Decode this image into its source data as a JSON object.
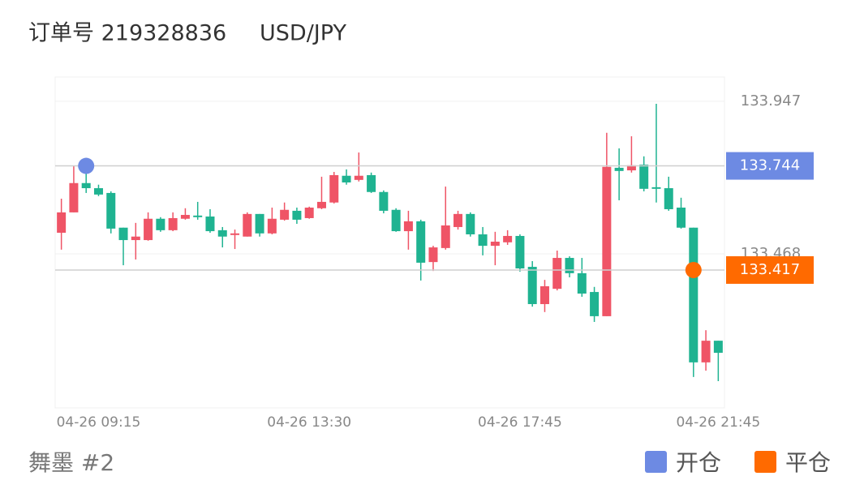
{
  "chart_data": {
    "type": "candlestick",
    "title": "订单号 219328836",
    "symbol": "USD/JPY",
    "footnote": "舞墨 #2",
    "categories": [
      null,
      null,
      null,
      "04-26 09:15",
      null,
      null,
      null,
      null,
      null,
      null,
      null,
      null,
      null,
      null,
      null,
      null,
      null,
      null,
      null,
      null,
      "04-26 13:30",
      null,
      null,
      null,
      null,
      null,
      null,
      null,
      null,
      null,
      null,
      null,
      null,
      null,
      null,
      null,
      null,
      "04-26 17:45",
      null,
      null,
      null,
      null,
      null,
      null,
      null,
      null,
      null,
      null,
      null,
      null,
      null,
      null,
      null,
      "04-26 21:45"
    ],
    "open": [
      133.534,
      133.598,
      133.69,
      133.674,
      133.659,
      133.55,
      133.511,
      133.511,
      133.578,
      133.542,
      133.578,
      133.588,
      133.585,
      133.542,
      133.527,
      133.522,
      133.593,
      133.532,
      133.575,
      133.603,
      133.58,
      133.611,
      133.629,
      133.713,
      133.7,
      133.715,
      133.662,
      133.606,
      133.539,
      133.57,
      133.442,
      133.486,
      133.552,
      133.593,
      133.529,
      133.493,
      133.504,
      133.524,
      133.427,
      133.31,
      133.358,
      133.455,
      133.407,
      133.348,
      133.272,
      133.738,
      133.73,
      133.748,
      133.677,
      133.674,
      133.613,
      133.55,
      133.127,
      133.195
    ],
    "high": [
      133.641,
      133.743,
      133.725,
      133.685,
      133.664,
      133.55,
      133.565,
      133.598,
      133.583,
      133.598,
      133.611,
      133.631,
      133.608,
      133.552,
      133.544,
      133.598,
      133.593,
      133.613,
      133.629,
      133.613,
      133.616,
      133.71,
      133.725,
      133.733,
      133.786,
      133.723,
      133.667,
      133.611,
      133.603,
      133.575,
      133.493,
      133.679,
      133.603,
      133.598,
      133.552,
      133.537,
      133.542,
      133.529,
      133.445,
      133.386,
      133.478,
      133.46,
      133.455,
      133.364,
      133.848,
      133.799,
      133.837,
      133.774,
      133.939,
      133.71,
      133.644,
      133.55,
      133.228,
      133.195
    ],
    "low": [
      133.481,
      133.598,
      133.659,
      133.649,
      133.532,
      133.432,
      133.45,
      133.509,
      133.537,
      133.539,
      133.575,
      133.575,
      133.534,
      133.488,
      133.483,
      133.522,
      133.522,
      133.529,
      133.572,
      133.562,
      133.578,
      133.608,
      133.626,
      133.685,
      133.695,
      133.659,
      133.595,
      133.537,
      133.481,
      133.384,
      133.414,
      133.481,
      133.544,
      133.522,
      133.463,
      133.432,
      133.496,
      133.412,
      133.302,
      133.285,
      133.353,
      133.394,
      133.333,
      133.254,
      133.272,
      133.636,
      133.723,
      133.664,
      133.629,
      133.603,
      133.547,
      133.081,
      133.101,
      133.068
    ],
    "close": [
      133.598,
      133.69,
      133.674,
      133.654,
      133.547,
      133.511,
      133.522,
      133.578,
      133.542,
      133.58,
      133.59,
      133.583,
      133.539,
      133.522,
      133.532,
      133.593,
      133.532,
      133.578,
      133.606,
      133.575,
      133.613,
      133.631,
      133.715,
      133.692,
      133.713,
      133.662,
      133.603,
      133.539,
      133.57,
      133.44,
      133.488,
      133.557,
      133.593,
      133.529,
      133.493,
      133.506,
      133.524,
      133.422,
      133.31,
      133.366,
      133.455,
      133.407,
      133.343,
      133.272,
      133.741,
      133.728,
      133.746,
      133.672,
      133.672,
      133.608,
      133.55,
      133.127,
      133.195,
      133.157
    ],
    "up_color": "#ef5466",
    "down_color": "#1fb391",
    "markers": [
      {
        "name": "开仓",
        "color": "#6d8ae3",
        "values": [
          null,
          null,
          133.744,
          null,
          null,
          null,
          null,
          null,
          null,
          null,
          null,
          null,
          null,
          null,
          null,
          null,
          null,
          null,
          null,
          null,
          null,
          null,
          null,
          null,
          null,
          null,
          null,
          null,
          null,
          null,
          null,
          null,
          null,
          null,
          null,
          null,
          null,
          null,
          null,
          null,
          null,
          null,
          null,
          null,
          null,
          null,
          null,
          null,
          null,
          null,
          null,
          null,
          null,
          null
        ]
      },
      {
        "name": "平仓",
        "color": "#ff6a00",
        "values": [
          null,
          null,
          null,
          null,
          null,
          null,
          null,
          null,
          null,
          null,
          null,
          null,
          null,
          null,
          null,
          null,
          null,
          null,
          null,
          null,
          null,
          null,
          null,
          null,
          null,
          null,
          null,
          null,
          null,
          null,
          null,
          null,
          null,
          null,
          null,
          null,
          null,
          null,
          null,
          null,
          null,
          null,
          null,
          null,
          null,
          null,
          null,
          null,
          null,
          null,
          null,
          133.417,
          null,
          null
        ]
      }
    ],
    "ylim": [
      132.984,
      134.023
    ],
    "yticks": [
      133.947,
      133.468
    ],
    "grid": true
  }
}
